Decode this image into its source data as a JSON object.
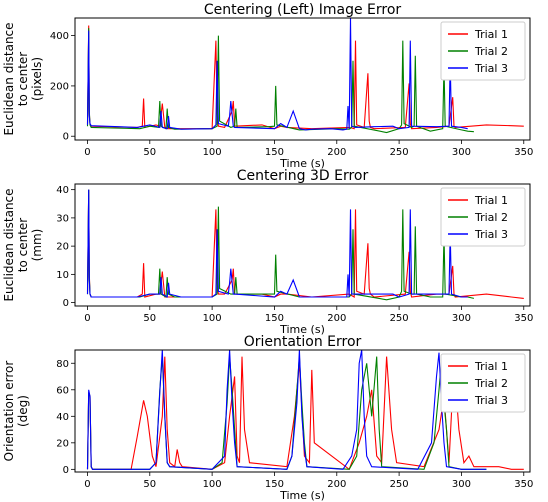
{
  "colors": {
    "Trial 1": "#ff0000",
    "Trial 2": "#008000",
    "Trial 3": "#0000ff"
  },
  "chart_data": [
    {
      "type": "line",
      "title": "Centering (Left) Image Error",
      "xlabel": "Time (s)",
      "ylabel": [
        "Euclidean distance",
        "to center",
        "(pixels)"
      ],
      "xlim": [
        -10,
        355
      ],
      "ylim": [
        -15,
        470
      ],
      "xticks": [
        0,
        50,
        100,
        150,
        200,
        250,
        300,
        350
      ],
      "yticks": [
        0,
        200,
        400
      ],
      "legend": "top-right",
      "series": [
        {
          "name": "Trial 1",
          "x": [
            0,
            1,
            1.5,
            2,
            3,
            40,
            44,
            45,
            46,
            55,
            58,
            60,
            62,
            65,
            100,
            103,
            104,
            105,
            110,
            116,
            117,
            118,
            140,
            150,
            155,
            160,
            180,
            210,
            214,
            215,
            216,
            222,
            225,
            226,
            227,
            230,
            255,
            258,
            259,
            260,
            280,
            290,
            293,
            294,
            295,
            320,
            340,
            350
          ],
          "y": [
            50,
            440,
            90,
            50,
            40,
            35,
            40,
            150,
            35,
            45,
            40,
            130,
            35,
            30,
            30,
            380,
            90,
            40,
            35,
            100,
            140,
            40,
            45,
            30,
            40,
            35,
            30,
            35,
            30,
            380,
            45,
            35,
            250,
            60,
            35,
            30,
            35,
            210,
            50,
            30,
            35,
            40,
            155,
            40,
            35,
            45,
            42,
            40
          ]
        },
        {
          "name": "Trial 2",
          "x": [
            0,
            1,
            1.5,
            2,
            3,
            42,
            50,
            57,
            58,
            59,
            63,
            64,
            65,
            70,
            100,
            104,
            105,
            106,
            115,
            118,
            119,
            120,
            145,
            150,
            151,
            152,
            170,
            200,
            210,
            212,
            213,
            214,
            240,
            250,
            252,
            253,
            254,
            260,
            262,
            263,
            264,
            275,
            285,
            286,
            287,
            300,
            305,
            310
          ],
          "y": [
            40,
            430,
            100,
            45,
            35,
            30,
            40,
            35,
            140,
            40,
            30,
            110,
            35,
            28,
            30,
            40,
            400,
            60,
            35,
            40,
            110,
            35,
            38,
            40,
            200,
            45,
            25,
            30,
            28,
            35,
            300,
            40,
            15,
            30,
            45,
            380,
            50,
            35,
            40,
            320,
            40,
            20,
            30,
            280,
            40,
            25,
            20,
            18
          ]
        },
        {
          "name": "Trial 3",
          "x": [
            0,
            1,
            1.5,
            2,
            3,
            40,
            50,
            58,
            59,
            60,
            64,
            65,
            66,
            75,
            100,
            103,
            104,
            105,
            113,
            114,
            115,
            117,
            118,
            150,
            155,
            160,
            165,
            170,
            175,
            180,
            195,
            205,
            208,
            209,
            210,
            211,
            212,
            215,
            230,
            245,
            250,
            258,
            259,
            260,
            280,
            290,
            291,
            292,
            300,
            305
          ],
          "y": [
            45,
            420,
            80,
            50,
            42,
            35,
            45,
            35,
            100,
            35,
            30,
            80,
            35,
            28,
            30,
            45,
            300,
            50,
            40,
            80,
            140,
            40,
            35,
            30,
            50,
            35,
            100,
            30,
            25,
            28,
            30,
            25,
            28,
            120,
            30,
            470,
            40,
            35,
            38,
            40,
            30,
            35,
            380,
            40,
            38,
            40,
            300,
            40,
            35,
            30
          ]
        }
      ]
    },
    {
      "type": "line",
      "title": "Centering 3D Error",
      "xlabel": "Time (s)",
      "ylabel": [
        "Euclidean distance",
        "to center",
        "(mm)"
      ],
      "xlim": [
        -10,
        355
      ],
      "ylim": [
        -1.2,
        42
      ],
      "xticks": [
        0,
        50,
        100,
        150,
        200,
        250,
        300,
        350
      ],
      "yticks": [
        0,
        10,
        20,
        30,
        40
      ],
      "legend": "top-right",
      "series": [
        {
          "name": "Trial 1",
          "x": [
            0,
            1,
            1.5,
            2,
            3,
            40,
            44,
            45,
            46,
            55,
            58,
            60,
            62,
            65,
            100,
            103,
            104,
            105,
            110,
            116,
            117,
            118,
            140,
            150,
            155,
            160,
            180,
            210,
            214,
            215,
            216,
            222,
            225,
            226,
            227,
            230,
            255,
            258,
            259,
            260,
            280,
            290,
            293,
            294,
            295,
            320,
            340,
            350
          ],
          "y": [
            4,
            40,
            10,
            3,
            2,
            2,
            3,
            14,
            2,
            3,
            3,
            11,
            2,
            2,
            2,
            33,
            7,
            3,
            3,
            8,
            12,
            3,
            3,
            2,
            3,
            3,
            2,
            3,
            2,
            33,
            4,
            3,
            21,
            5,
            3,
            2,
            3,
            18,
            4,
            2,
            3,
            3,
            13,
            3,
            2,
            3,
            2,
            1.5
          ]
        },
        {
          "name": "Trial 2",
          "x": [
            0,
            1,
            1.5,
            2,
            3,
            42,
            50,
            57,
            58,
            59,
            63,
            64,
            65,
            70,
            100,
            104,
            105,
            106,
            115,
            118,
            119,
            120,
            145,
            150,
            151,
            152,
            170,
            200,
            210,
            212,
            213,
            214,
            240,
            250,
            252,
            253,
            254,
            260,
            262,
            263,
            264,
            275,
            285,
            286,
            287,
            300,
            305,
            310
          ],
          "y": [
            3,
            40,
            9,
            3,
            2,
            2,
            3,
            3,
            12,
            3,
            2,
            9,
            3,
            2,
            2,
            3,
            34,
            5,
            3,
            3,
            9,
            3,
            3,
            3,
            17,
            4,
            2,
            2,
            2,
            3,
            26,
            3,
            1,
            2,
            4,
            33,
            4,
            3,
            3,
            27,
            3,
            2,
            2,
            24,
            3,
            2,
            2,
            1.5
          ]
        },
        {
          "name": "Trial 3",
          "x": [
            0,
            1,
            1.5,
            2,
            3,
            40,
            50,
            58,
            59,
            60,
            64,
            65,
            66,
            75,
            100,
            103,
            104,
            105,
            113,
            114,
            115,
            117,
            118,
            150,
            155,
            160,
            165,
            170,
            175,
            180,
            195,
            205,
            208,
            209,
            210,
            211,
            212,
            215,
            230,
            245,
            250,
            258,
            259,
            260,
            280,
            290,
            291,
            292,
            300,
            305
          ],
          "y": [
            3,
            40,
            8,
            3,
            2,
            2,
            3,
            3,
            9,
            3,
            2,
            7,
            3,
            2,
            2,
            3,
            26,
            4,
            3,
            7,
            12,
            3,
            3,
            2,
            4,
            3,
            8,
            2,
            2,
            2,
            2,
            2,
            2,
            10,
            2,
            33,
            3,
            3,
            3,
            3,
            2,
            3,
            33,
            3,
            3,
            3,
            25,
            3,
            2,
            2
          ]
        }
      ]
    },
    {
      "type": "line",
      "title": "Orientation Error",
      "xlabel": "Time (s)",
      "ylabel": [
        "Orientation error",
        "(deg)"
      ],
      "xlim": [
        -10,
        355
      ],
      "ylim": [
        -2,
        90
      ],
      "xticks": [
        0,
        50,
        100,
        150,
        200,
        250,
        300,
        350
      ],
      "yticks": [
        0,
        20,
        40,
        60,
        80
      ],
      "legend": "top-right",
      "series": [
        {
          "name": "Trial 1",
          "x": [
            0,
            1,
            2,
            3,
            4,
            35,
            40,
            45,
            48,
            52,
            55,
            60,
            62,
            64,
            66,
            70,
            72,
            74,
            76,
            100,
            110,
            114,
            118,
            120,
            122,
            124,
            126,
            130,
            160,
            166,
            170,
            174,
            178,
            180,
            182,
            210,
            218,
            224,
            228,
            232,
            236,
            240,
            244,
            248,
            270,
            282,
            286,
            290,
            294,
            298,
            302,
            306,
            310,
            330,
            340,
            350
          ],
          "y": [
            0,
            58,
            55,
            2,
            0,
            0,
            25,
            52,
            40,
            10,
            2,
            40,
            85,
            30,
            5,
            2,
            15,
            5,
            2,
            0,
            5,
            40,
            70,
            10,
            5,
            85,
            30,
            5,
            2,
            40,
            80,
            10,
            5,
            75,
            20,
            0,
            20,
            40,
            60,
            10,
            5,
            85,
            30,
            5,
            2,
            30,
            55,
            5,
            80,
            30,
            5,
            10,
            2,
            2,
            0,
            0
          ]
        },
        {
          "name": "Trial 2",
          "x": [
            0,
            1,
            2,
            3,
            4,
            50,
            55,
            58,
            60,
            62,
            64,
            66,
            100,
            108,
            112,
            114,
            116,
            118,
            120,
            160,
            164,
            168,
            170,
            172,
            174,
            176,
            210,
            216,
            220,
            224,
            228,
            232,
            234,
            236,
            270,
            278,
            282,
            284,
            286,
            288,
            290,
            300,
            320
          ],
          "y": [
            0,
            58,
            55,
            2,
            0,
            0,
            5,
            60,
            85,
            40,
            5,
            2,
            0,
            5,
            50,
            85,
            60,
            30,
            2,
            0,
            10,
            60,
            85,
            50,
            20,
            2,
            0,
            10,
            60,
            80,
            40,
            85,
            30,
            2,
            0,
            20,
            60,
            82,
            50,
            30,
            2,
            0,
            0
          ]
        },
        {
          "name": "Trial 3",
          "x": [
            0,
            1,
            2,
            3,
            4,
            50,
            55,
            58,
            60,
            62,
            64,
            66,
            100,
            110,
            112,
            114,
            116,
            118,
            120,
            160,
            164,
            168,
            170,
            172,
            174,
            176,
            205,
            212,
            216,
            218,
            220,
            222,
            224,
            228,
            265,
            276,
            280,
            282,
            284,
            286,
            288,
            300,
            320
          ],
          "y": [
            0,
            60,
            55,
            2,
            0,
            0,
            5,
            58,
            90,
            40,
            5,
            2,
            0,
            10,
            60,
            90,
            50,
            20,
            2,
            0,
            10,
            50,
            90,
            40,
            15,
            2,
            0,
            10,
            30,
            80,
            90,
            40,
            10,
            2,
            0,
            20,
            70,
            88,
            50,
            20,
            2,
            0,
            0
          ]
        }
      ]
    }
  ]
}
